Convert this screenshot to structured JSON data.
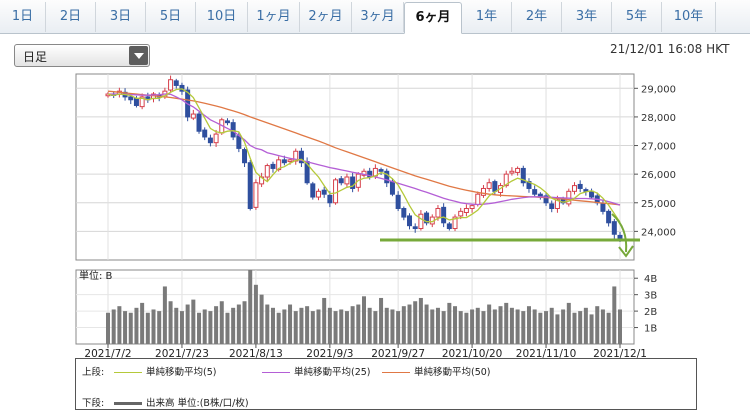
{
  "tabs": [
    {
      "label": "1日",
      "active": false
    },
    {
      "label": "2日",
      "active": false
    },
    {
      "label": "3日",
      "active": false
    },
    {
      "label": "5日",
      "active": false
    },
    {
      "label": "10日",
      "active": false
    },
    {
      "label": "1ヶ月",
      "active": false
    },
    {
      "label": "2ヶ月",
      "active": false
    },
    {
      "label": "3ヶ月",
      "active": false
    },
    {
      "label": "6ヶ月",
      "active": true
    },
    {
      "label": "1年",
      "active": false
    },
    {
      "label": "2年",
      "active": false
    },
    {
      "label": "3年",
      "active": false
    },
    {
      "label": "5年",
      "active": false
    },
    {
      "label": "10年",
      "active": false
    }
  ],
  "period_select": {
    "value": "日足"
  },
  "timestamp": "21/12/01 16:08 HKT",
  "legend": {
    "upper_label": "上段:",
    "lower_label": "下段:",
    "items": [
      {
        "label": "単純移動平均(5)",
        "color": "#b5c93a"
      },
      {
        "label": "単純移動平均(25)",
        "color": "#b45fd6"
      },
      {
        "label": "単純移動平均(50)",
        "color": "#e07845"
      }
    ],
    "volume_label": "出来高 単位:(B株/口/枚)",
    "volume_color": "#666666"
  },
  "chart_data": {
    "type": "candlestick",
    "price_ticks": [
      "29,000",
      "28,000",
      "27,000",
      "26,000",
      "25,000",
      "24,000"
    ],
    "ylim": [
      23000,
      29500
    ],
    "x_tick_labels": [
      "2021/7/2",
      "2021/7/23",
      "2021/8/13",
      "2021/9/3",
      "2021/9/27",
      "2021/10/20",
      "2021/11/10",
      "2021/12/1"
    ],
    "closes": [
      28800,
      28750,
      28900,
      28700,
      28600,
      28400,
      28700,
      28600,
      28800,
      28700,
      28900,
      29300,
      29100,
      28900,
      28000,
      28100,
      27500,
      27300,
      27100,
      27400,
      27900,
      27800,
      27300,
      26900,
      26400,
      24800,
      25700,
      25900,
      26300,
      26200,
      26500,
      26400,
      26500,
      26800,
      26400,
      25700,
      25200,
      25400,
      25300,
      25000,
      25800,
      25700,
      25900,
      25500,
      26000,
      26100,
      25900,
      26200,
      26100,
      25700,
      25300,
      24800,
      24500,
      24200,
      24100,
      24600,
      24300,
      24500,
      24800,
      24300,
      24100,
      24500,
      24700,
      24800,
      24900,
      25300,
      25500,
      25700,
      25400,
      25600,
      26000,
      26100,
      26200,
      25700,
      25500,
      25300,
      25200,
      25000,
      24800,
      25100,
      25000,
      25400,
      25600,
      25500,
      25400,
      25200,
      25000,
      24700,
      24300,
      23900,
      23700
    ],
    "ma5": [
      28800,
      28750,
      28800,
      28780,
      28750,
      28650,
      28650,
      28600,
      28650,
      28650,
      28740,
      28860,
      28960,
      28980,
      28860,
      28680,
      28320,
      27960,
      27600,
      27480,
      27440,
      27500,
      27520,
      27480,
      27120,
      26560,
      26060,
      25880,
      25740,
      25980,
      26200,
      26260,
      26380,
      26480,
      26520,
      26360,
      26120,
      25900,
      25600,
      25320,
      25340,
      25440,
      25540,
      25580,
      25780,
      25860,
      25880,
      25940,
      26060,
      26000,
      25840,
      25620,
      25280,
      24900,
      24580,
      24440,
      24340,
      24340,
      24460,
      24500,
      24400,
      24440,
      24480,
      24480,
      24600,
      24740,
      24980,
      25240,
      25380,
      25500,
      25640,
      25760,
      25860,
      25800,
      25720,
      25640,
      25520,
      25360,
      25160,
      25080,
      25020,
      25060,
      25160,
      25320,
      25380,
      25420,
      25340,
      25160,
      24920,
      24620,
      24320
    ],
    "ma25": [
      28800,
      28800,
      28800,
      28790,
      28780,
      28770,
      28760,
      28760,
      28770,
      28780,
      28800,
      28790,
      28700,
      28600,
      28450,
      28350,
      28200,
      28050,
      27900,
      27800,
      27700,
      27600,
      27500,
      27350,
      27200,
      27000,
      26900,
      26850,
      26750,
      26700,
      26650,
      26600,
      26550,
      26520,
      26480,
      26430,
      26380,
      26330,
      26280,
      26230,
      26190,
      26150,
      26110,
      26070,
      26030,
      25990,
      25950,
      25900,
      25850,
      25800,
      25740,
      25680,
      25620,
      25560,
      25500,
      25430,
      25370,
      25300,
      25230,
      25160,
      25100,
      25050,
      25000,
      24970,
      24950,
      24940,
      24950,
      24970,
      25000,
      25040,
      25080,
      25120,
      25150,
      25180,
      25200,
      25210,
      25210,
      25200,
      25190,
      25180,
      25170,
      25160,
      25150,
      25150,
      25150,
      25140,
      25120,
      25090,
      25040,
      24980,
      24920
    ],
    "ma50": [
      28900,
      28880,
      28860,
      28840,
      28820,
      28800,
      28780,
      28760,
      28740,
      28720,
      28700,
      28680,
      28650,
      28620,
      28590,
      28560,
      28520,
      28480,
      28430,
      28380,
      28330,
      28270,
      28210,
      28150,
      28080,
      28000,
      27930,
      27860,
      27790,
      27720,
      27650,
      27580,
      27510,
      27440,
      27370,
      27300,
      27230,
      27160,
      27080,
      27000,
      26920,
      26850,
      26780,
      26710,
      26640,
      26570,
      26500,
      26430,
      26360,
      26290,
      26220,
      26150,
      26080,
      26010,
      25940,
      25880,
      25820,
      25760,
      25700,
      25640,
      25580,
      25530,
      25480,
      25440,
      25400,
      25360,
      25330,
      25300,
      25280,
      25260,
      25250,
      25240,
      25230,
      25220,
      25210,
      25200,
      25190,
      25180,
      25170,
      25150,
      25130,
      25110,
      25090,
      25070,
      25050,
      25030,
      25010,
      24990,
      24970,
      24950,
      24930
    ],
    "support_level": 23700,
    "volume_unit_label": "単位: B",
    "volume_ticks": [
      "4B",
      "3B",
      "2B",
      "1B"
    ],
    "volume_ylim": [
      0,
      4.5
    ],
    "volumes": [
      1.9,
      2.1,
      2.3,
      2.0,
      1.9,
      2.2,
      2.5,
      1.9,
      2.1,
      2.0,
      3.5,
      2.6,
      2.2,
      2.0,
      2.4,
      2.7,
      1.9,
      2.1,
      2.0,
      2.3,
      2.6,
      1.9,
      2.2,
      2.4,
      2.6,
      4.5,
      3.6,
      3.0,
      2.4,
      2.2,
      1.9,
      2.1,
      2.4,
      2.0,
      2.2,
      2.3,
      2.0,
      2.1,
      2.8,
      2.2,
      2.0,
      2.1,
      2.0,
      2.3,
      2.4,
      2.9,
      2.2,
      2.0,
      2.8,
      2.2,
      2.1,
      2.0,
      2.3,
      2.4,
      2.6,
      2.8,
      2.4,
      2.1,
      2.2,
      2.0,
      2.5,
      2.3,
      2.0,
      1.9,
      2.1,
      2.2,
      2.0,
      2.4,
      2.1,
      2.3,
      2.5,
      2.2,
      2.1,
      2.0,
      2.3,
      2.1,
      1.9,
      2.0,
      2.2,
      1.8,
      2.1,
      2.5,
      1.9,
      2.0,
      2.2,
      1.8,
      2.3,
      2.1,
      1.9,
      3.5,
      2.1
    ]
  }
}
